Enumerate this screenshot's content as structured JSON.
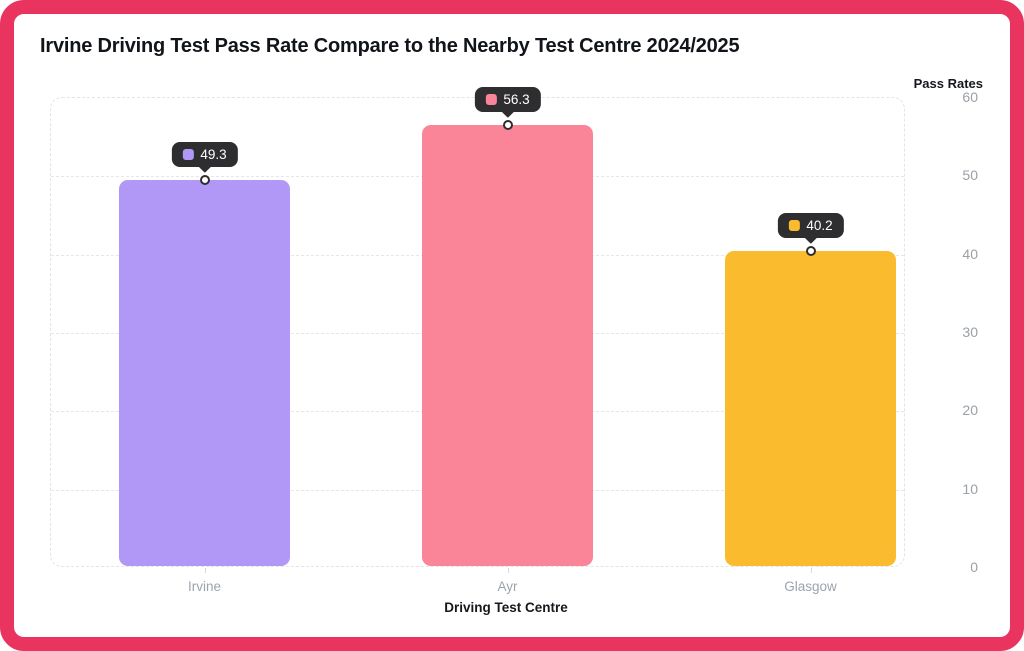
{
  "frame": {
    "border_color": "#E8345F"
  },
  "header": {
    "title": "Irvine Driving Test Pass Rate Compare to the Nearby Test Centre 2024/2025"
  },
  "chart_data": {
    "type": "bar",
    "title": "Irvine Driving Test Pass Rate Compare to the Nearby Test Centre 2024/2025",
    "xlabel": "Driving Test Centre",
    "ylabel": "Pass Rates",
    "categories": [
      "Irvine",
      "Ayr",
      "Glasgow"
    ],
    "values": [
      49.3,
      56.3,
      40.2
    ],
    "bar_colors": [
      "#B197F6",
      "#FB8598",
      "#FBBB2E"
    ],
    "tooltip_bg": "#2E2E30",
    "ylim": [
      0,
      60
    ],
    "yticks": [
      0,
      10,
      20,
      30,
      40,
      50,
      60
    ],
    "grid": "horizontal-dashed",
    "legend_position": "none"
  }
}
